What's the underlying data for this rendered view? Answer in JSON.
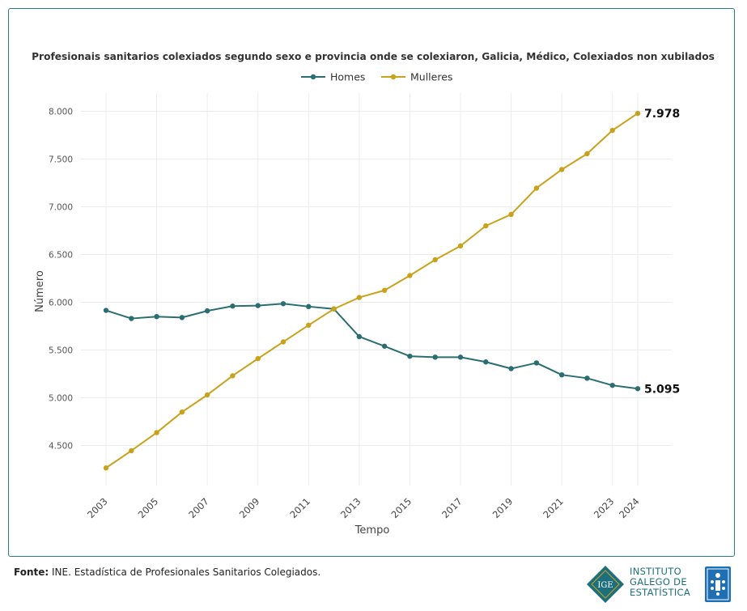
{
  "chart_data": {
    "type": "line",
    "title": "Profesionais sanitarios colexiados segundo sexo e provincia onde se colexiaron, Galicia, Médico, Colexiados non xubilados",
    "xlabel": "Tempo",
    "ylabel": "Número",
    "x": [
      2003,
      2004,
      2005,
      2006,
      2007,
      2008,
      2009,
      2010,
      2011,
      2012,
      2013,
      2014,
      2015,
      2016,
      2017,
      2018,
      2019,
      2020,
      2021,
      2022,
      2023,
      2024
    ],
    "x_tick_labels": [
      "2003",
      "2005",
      "2007",
      "2009",
      "2011",
      "2013",
      "2015",
      "2017",
      "2019",
      "2021",
      "2023",
      "2024"
    ],
    "y_tick_values": [
      4500,
      5000,
      5500,
      6000,
      6500,
      7000,
      7500,
      8000
    ],
    "y_tick_labels": [
      "4.500",
      "5.000",
      "5.500",
      "6.000",
      "6.500",
      "7.000",
      "7.500",
      "8.000"
    ],
    "ylim": [
      4300,
      8200
    ],
    "grid": true,
    "legend_position": "top-center",
    "series": [
      {
        "name": "Homes",
        "color": "#2a6d72",
        "values": [
          5915,
          5830,
          5850,
          5840,
          5910,
          5960,
          5965,
          5985,
          5955,
          5930,
          5640,
          5540,
          5435,
          5425,
          5425,
          5375,
          5305,
          5365,
          5240,
          5205,
          5130,
          5095
        ],
        "end_label": "5.095"
      },
      {
        "name": "Mulleres",
        "color": "#c9a21b",
        "values": [
          4265,
          4445,
          4635,
          4850,
          5030,
          5230,
          5410,
          5585,
          5760,
          5930,
          6050,
          6125,
          6280,
          6445,
          6590,
          6800,
          6920,
          7195,
          7390,
          7555,
          7800,
          7978
        ],
        "end_label": "7.978"
      }
    ]
  },
  "footer": {
    "source_label": "Fonte:",
    "source_text": "INE. Estadística de Profesionales Sanitarios Colegiados.",
    "logo_lines": [
      "INSTITUTO",
      "GALEGO DE",
      "ESTATÍSTICA"
    ],
    "logo_mark": "IGE",
    "logo_color": "#1e6f7d",
    "shield_color": "#1f6fb4"
  }
}
